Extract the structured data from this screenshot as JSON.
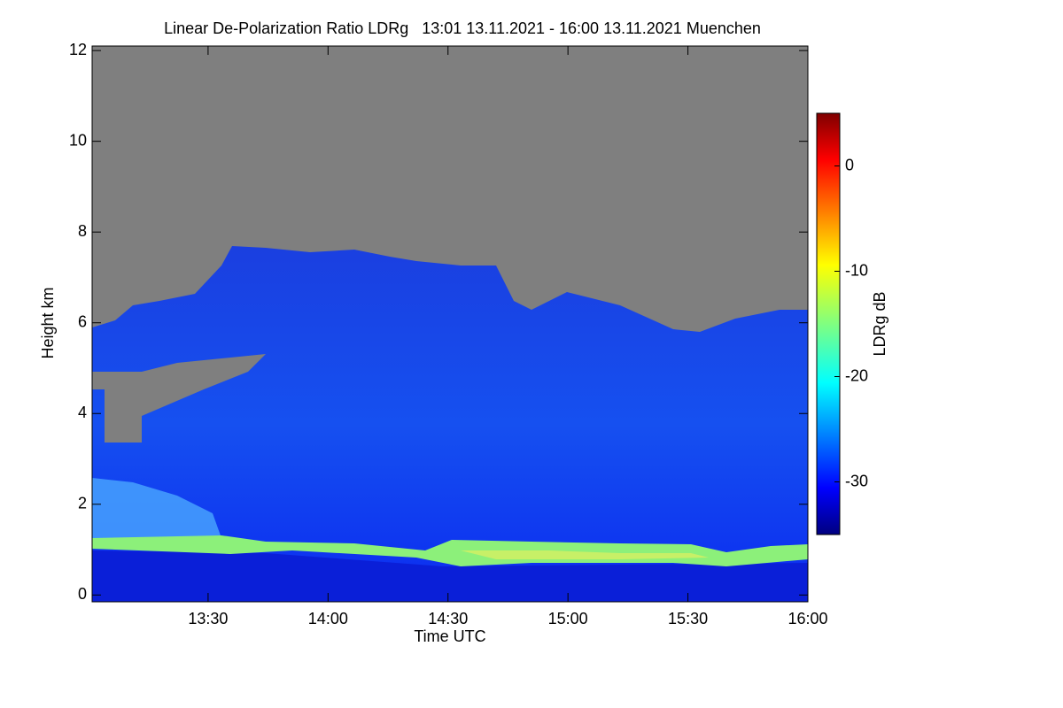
{
  "chart_data": {
    "type": "heatmap",
    "title": "Linear De-Polarization Ratio LDRg   13:01 13.11.2021 - 16:00 13.11.2021 Muenchen",
    "xlabel": "Time UTC",
    "ylabel": "Height km",
    "xlim": [
      781,
      960
    ],
    "xticks": [
      {
        "value": 810,
        "label": "13:30"
      },
      {
        "value": 840,
        "label": "14:00"
      },
      {
        "value": 870,
        "label": "14:30"
      },
      {
        "value": 900,
        "label": "15:00"
      },
      {
        "value": 930,
        "label": "15:30"
      },
      {
        "value": 960,
        "label": "16:00"
      }
    ],
    "ylim": [
      -0.15,
      12.1
    ],
    "yticks": [
      0,
      2,
      4,
      6,
      8,
      10,
      12
    ],
    "colorbar": {
      "label": "LDRg dB",
      "lim": [
        -35,
        5
      ],
      "ticks": [
        -30,
        -20,
        -10,
        0
      ]
    }
  }
}
